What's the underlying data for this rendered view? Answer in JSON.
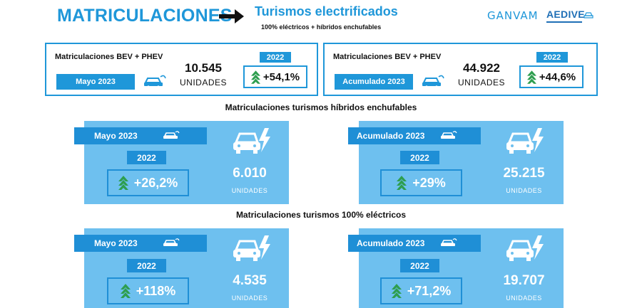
{
  "header": {
    "title": "MATRICULACIONES",
    "subtitle": "Turismos electrificados",
    "subtitle_note": "100% eléctricos + híbridos enchufables",
    "logo_ganvam": "GANVAM",
    "logo_aedive": "AEDIVE"
  },
  "summary": [
    {
      "label": "Matriculaciones BEV + PHEV",
      "period": "Mayo 2023",
      "value": "10.545",
      "unit": "UNIDADES",
      "year": "2022",
      "change": "+54,1%"
    },
    {
      "label": "Matriculaciones BEV + PHEV",
      "period": "Acumulado 2023",
      "value": "44.922",
      "unit": "UNIDADES",
      "year": "2022",
      "change": "+44,6%"
    }
  ],
  "sections": [
    {
      "title": "Matriculaciones turismos híbridos enchufables",
      "panels": [
        {
          "period": "Mayo 2023",
          "year": "2022",
          "change": "+26,2%",
          "value": "6.010",
          "unit": "UNIDADES"
        },
        {
          "period": "Acumulado 2023",
          "year": "2022",
          "change": "+29%",
          "value": "25.215",
          "unit": "UNIDADES"
        }
      ]
    },
    {
      "title": "Matriculaciones turismos 100% eléctricos",
      "panels": [
        {
          "period": "Mayo 2023",
          "year": "2022",
          "change": "+118%",
          "value": "4.535",
          "unit": "UNIDADES"
        },
        {
          "period": "Acumulado 2023",
          "year": "2022",
          "change": "+71,2%",
          "value": "19.707",
          "unit": "UNIDADES"
        }
      ]
    }
  ],
  "colors": {
    "accent": "#1f97d9",
    "panel": "#6ec0ef",
    "panel_dark": "#1f8fd6",
    "arrow_green": "#2e9e4f"
  },
  "icons": [
    "arrow-right-icon",
    "plug-car-icon",
    "electric-car-icon",
    "up-arrow-icon"
  ]
}
